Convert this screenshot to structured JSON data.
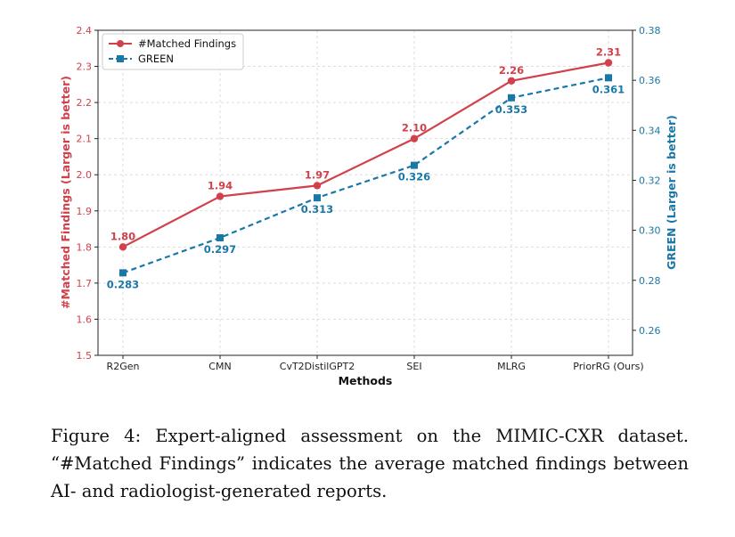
{
  "chart_data": {
    "type": "line",
    "categories": [
      "R2Gen",
      "CMN",
      "CvT2DistilGPT2",
      "SEI",
      "MLRG",
      "PriorRG (Ours)"
    ],
    "xlabel": "Methods",
    "ylabel": "#Matched Findings (Larger is better)",
    "y2label": "GREEN (Larger is better)",
    "ylim": [
      1.5,
      2.4
    ],
    "y2lim": [
      0.25,
      0.38
    ],
    "yticks": [
      "1.5",
      "1.6",
      "1.7",
      "1.8",
      "1.9",
      "2.0",
      "2.1",
      "2.2",
      "2.3",
      "2.4"
    ],
    "y2ticks": [
      "0.26",
      "0.28",
      "0.30",
      "0.32",
      "0.34",
      "0.36",
      "0.38"
    ],
    "grid": true,
    "legend_position": "top-left",
    "series": [
      {
        "name": "#Matched Findings",
        "axis": "left",
        "values": [
          1.8,
          1.94,
          1.97,
          2.1,
          2.26,
          2.31
        ],
        "labels": [
          "1.80",
          "1.94",
          "1.97",
          "2.10",
          "2.26",
          "2.31"
        ],
        "color": "#d1414b",
        "line_style": "solid",
        "marker": "circle"
      },
      {
        "name": "GREEN",
        "axis": "right",
        "values": [
          0.283,
          0.297,
          0.313,
          0.326,
          0.353,
          0.361
        ],
        "labels": [
          "0.283",
          "0.297",
          "0.313",
          "0.326",
          "0.353",
          "0.361"
        ],
        "color": "#1a78a8",
        "line_style": "dashed",
        "marker": "square"
      }
    ]
  },
  "caption": "Figure 4: Expert-aligned assessment on the MIMIC-CXR dataset. “#Matched Findings” indicates the average matched findings between AI- and radiologist-generated reports."
}
